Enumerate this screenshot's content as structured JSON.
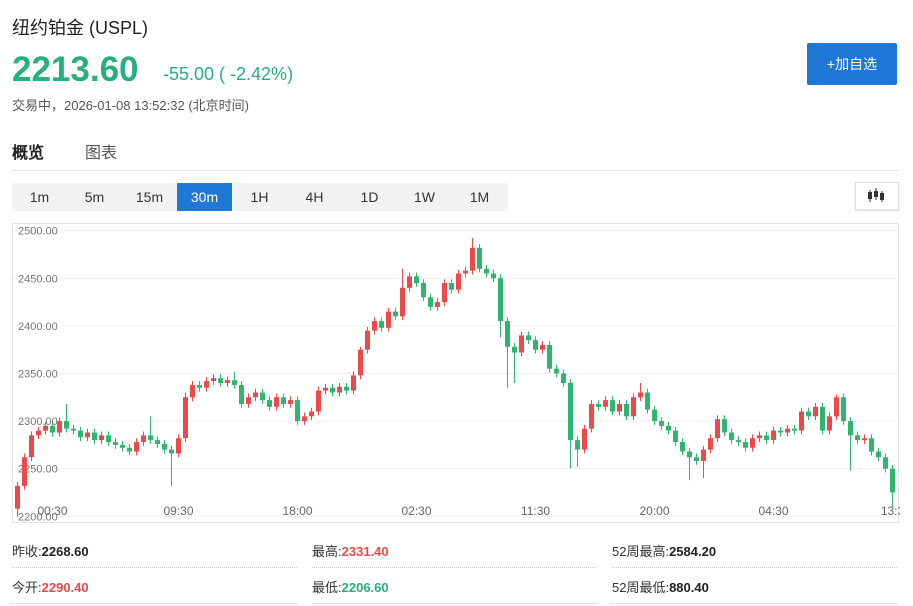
{
  "header": {
    "title": "纽约铂金 (USPL)",
    "price": "2213.60",
    "change": "-55.00 ( -2.42%)",
    "status": "交易中，2026-01-08 13:52:32 (北京时间)",
    "watch_button": "+加自选"
  },
  "tabs": [
    "概览",
    "图表"
  ],
  "intervals": {
    "items": [
      "1m",
      "5m",
      "15m",
      "30m",
      "1H",
      "4H",
      "1D",
      "1W",
      "1M"
    ],
    "active": "30m"
  },
  "stats": [
    [
      {
        "label": "昨收:",
        "value": "2268.60",
        "tone": "plain"
      },
      {
        "label": "最高:",
        "value": "2331.40",
        "tone": "up"
      },
      {
        "label": "52周最高:",
        "value": "2584.20",
        "tone": "plain"
      }
    ],
    [
      {
        "label": "今开:",
        "value": "2290.40",
        "tone": "up"
      },
      {
        "label": "最低:",
        "value": "2206.60",
        "tone": "down"
      },
      {
        "label": "52周最低:",
        "value": "880.40",
        "tone": "plain"
      }
    ]
  ],
  "chart_data": {
    "type": "candlestick",
    "up_color": "#ec4a4a",
    "down_color": "#2fb56f",
    "grid": true,
    "ylim": [
      2194,
      2507
    ],
    "yticks": [
      {
        "value": 2200,
        "label": "2200.00"
      },
      {
        "value": 2250,
        "label": "2250.00"
      },
      {
        "value": 2300,
        "label": "2300.00"
      },
      {
        "value": 2350,
        "label": "2350.00"
      },
      {
        "value": 2400,
        "label": "2400.00"
      },
      {
        "value": 2450,
        "label": "2450.00"
      },
      {
        "value": 2500,
        "label": "2500.00"
      }
    ],
    "categories": [
      null,
      null,
      null,
      null,
      null,
      "00:30",
      null,
      null,
      null,
      null,
      null,
      null,
      null,
      null,
      null,
      null,
      null,
      null,
      null,
      null,
      null,
      null,
      null,
      "09:30",
      null,
      null,
      null,
      null,
      null,
      null,
      null,
      null,
      null,
      null,
      null,
      null,
      null,
      null,
      null,
      null,
      "18:00",
      null,
      null,
      null,
      null,
      null,
      null,
      null,
      null,
      null,
      null,
      null,
      null,
      null,
      null,
      null,
      null,
      "02:30",
      null,
      null,
      null,
      null,
      null,
      null,
      null,
      null,
      null,
      null,
      null,
      null,
      null,
      null,
      null,
      null,
      "11:30",
      null,
      null,
      null,
      null,
      null,
      null,
      null,
      null,
      null,
      null,
      null,
      null,
      null,
      null,
      null,
      null,
      "20:00",
      null,
      null,
      null,
      null,
      null,
      null,
      null,
      null,
      null,
      null,
      null,
      null,
      null,
      null,
      null,
      null,
      "04:30",
      null,
      null,
      null,
      null,
      null,
      null,
      null,
      null,
      null,
      null,
      null,
      null,
      null,
      null,
      null,
      null,
      "13:3"
    ],
    "open": [
      2208,
      2232,
      2262,
      2285,
      2290,
      2295,
      2288,
      2300,
      2292,
      2290,
      2283,
      2288,
      2280,
      2285,
      2278,
      2275,
      2272,
      2268,
      2278,
      2285,
      2280,
      2276,
      2270,
      2266,
      2282,
      2325,
      2338,
      2335,
      2342,
      2345,
      2340,
      2343,
      2338,
      2318,
      2325,
      2330,
      2322,
      2315,
      2325,
      2318,
      2322,
      2300,
      2305,
      2310,
      2332,
      2335,
      2330,
      2336,
      2332,
      2348,
      2375,
      2395,
      2405,
      2398,
      2415,
      2410,
      2440,
      2452,
      2445,
      2430,
      2420,
      2425,
      2445,
      2438,
      2455,
      2458,
      2482,
      2460,
      2455,
      2450,
      2405,
      2378,
      2372,
      2390,
      2385,
      2375,
      2380,
      2355,
      2350,
      2340,
      2280,
      2270,
      2292,
      2318,
      2315,
      2322,
      2310,
      2318,
      2305,
      2325,
      2330,
      2312,
      2300,
      2295,
      2290,
      2278,
      2268,
      2262,
      2258,
      2270,
      2282,
      2302,
      2288,
      2280,
      2278,
      2272,
      2282,
      2285,
      2280,
      2290,
      2288,
      2292,
      2290,
      2310,
      2305,
      2315,
      2290,
      2305,
      2325,
      2300,
      2285,
      2280,
      2282,
      2268,
      2262,
      2250
    ],
    "high": [
      2236,
      2266,
      2289,
      2294,
      2299,
      2299,
      2304,
      2318,
      2296,
      2294,
      2292,
      2292,
      2289,
      2289,
      2282,
      2279,
      2276,
      2282,
      2289,
      2305,
      2284,
      2280,
      2274,
      2286,
      2330,
      2342,
      2342,
      2346,
      2349,
      2349,
      2347,
      2352,
      2342,
      2329,
      2334,
      2334,
      2326,
      2329,
      2329,
      2326,
      2326,
      2309,
      2314,
      2336,
      2339,
      2339,
      2340,
      2340,
      2352,
      2378,
      2399,
      2409,
      2409,
      2419,
      2419,
      2460,
      2456,
      2456,
      2449,
      2434,
      2429,
      2449,
      2449,
      2459,
      2462,
      2492,
      2486,
      2464,
      2459,
      2454,
      2409,
      2382,
      2394,
      2394,
      2389,
      2384,
      2384,
      2359,
      2354,
      2344,
      2284,
      2296,
      2322,
      2322,
      2326,
      2326,
      2322,
      2322,
      2329,
      2340,
      2334,
      2316,
      2304,
      2299,
      2294,
      2282,
      2272,
      2266,
      2274,
      2286,
      2306,
      2306,
      2292,
      2284,
      2282,
      2286,
      2289,
      2289,
      2294,
      2294,
      2296,
      2296,
      2314,
      2314,
      2319,
      2319,
      2309,
      2328,
      2329,
      2304,
      2289,
      2286,
      2286,
      2272,
      2266,
      2254
    ],
    "low": [
      2200,
      2228,
      2258,
      2281,
      2286,
      2284,
      2284,
      2288,
      2286,
      2279,
      2279,
      2276,
      2276,
      2274,
      2271,
      2268,
      2264,
      2264,
      2274,
      2276,
      2272,
      2266,
      2232,
      2262,
      2278,
      2321,
      2331,
      2331,
      2338,
      2336,
      2336,
      2334,
      2314,
      2314,
      2321,
      2318,
      2311,
      2311,
      2314,
      2314,
      2296,
      2296,
      2301,
      2306,
      2328,
      2326,
      2326,
      2328,
      2328,
      2344,
      2371,
      2391,
      2394,
      2394,
      2406,
      2406,
      2436,
      2441,
      2426,
      2416,
      2416,
      2421,
      2434,
      2434,
      2451,
      2454,
      2456,
      2451,
      2446,
      2388,
      2335,
      2340,
      2368,
      2381,
      2371,
      2371,
      2351,
      2346,
      2336,
      2250,
      2252,
      2266,
      2288,
      2311,
      2311,
      2306,
      2306,
      2301,
      2301,
      2321,
      2308,
      2296,
      2291,
      2286,
      2274,
      2264,
      2238,
      2254,
      2240,
      2266,
      2278,
      2284,
      2276,
      2274,
      2268,
      2268,
      2278,
      2276,
      2276,
      2284,
      2284,
      2286,
      2286,
      2301,
      2301,
      2286,
      2286,
      2301,
      2296,
      2248,
      2276,
      2276,
      2264,
      2258,
      2246,
      2210
    ],
    "close": [
      2232,
      2262,
      2285,
      2290,
      2295,
      2288,
      2300,
      2292,
      2290,
      2283,
      2288,
      2280,
      2285,
      2278,
      2275,
      2272,
      2268,
      2278,
      2285,
      2280,
      2276,
      2270,
      2266,
      2282,
      2325,
      2338,
      2335,
      2342,
      2345,
      2340,
      2343,
      2338,
      2318,
      2325,
      2330,
      2322,
      2315,
      2325,
      2318,
      2322,
      2300,
      2305,
      2310,
      2332,
      2335,
      2330,
      2336,
      2332,
      2348,
      2375,
      2395,
      2405,
      2398,
      2415,
      2410,
      2440,
      2452,
      2445,
      2430,
      2420,
      2425,
      2445,
      2438,
      2455,
      2458,
      2482,
      2460,
      2455,
      2450,
      2405,
      2378,
      2372,
      2390,
      2385,
      2375,
      2380,
      2355,
      2350,
      2340,
      2280,
      2270,
      2292,
      2318,
      2315,
      2322,
      2310,
      2318,
      2305,
      2325,
      2330,
      2312,
      2300,
      2295,
      2290,
      2278,
      2268,
      2262,
      2258,
      2270,
      2282,
      2302,
      2288,
      2280,
      2278,
      2272,
      2282,
      2285,
      2280,
      2290,
      2288,
      2292,
      2290,
      2310,
      2305,
      2315,
      2290,
      2305,
      2325,
      2300,
      2285,
      2280,
      2282,
      2268,
      2262,
      2250,
      2225
    ]
  }
}
